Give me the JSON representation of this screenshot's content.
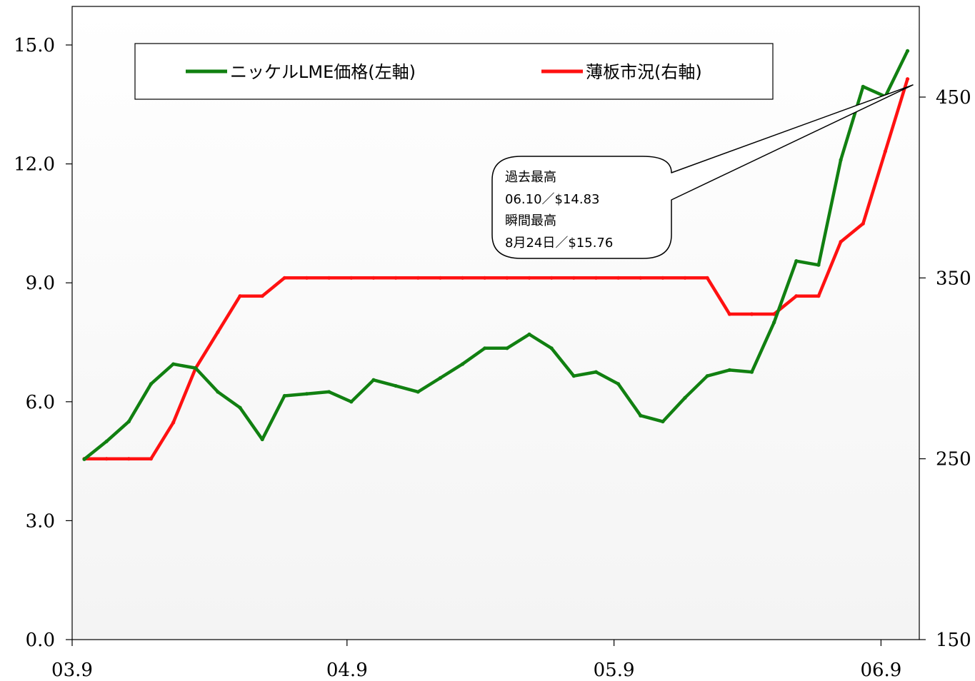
{
  "chart_data": {
    "type": "line",
    "x_labels": [
      "03.9",
      "04.9",
      "05.9",
      "06.9"
    ],
    "x_label_index": [
      0,
      12,
      24,
      36
    ],
    "left_axis": {
      "ylim": [
        0,
        15
      ],
      "ticks": [
        "0.0",
        "3.0",
        "6.0",
        "9.0",
        "12.0",
        "15.0"
      ],
      "tick_values": [
        0,
        3,
        6,
        9,
        12,
        15
      ]
    },
    "right_axis": {
      "ylim": [
        150,
        480
      ],
      "ticks": [
        "150",
        "250",
        "350",
        "450"
      ],
      "tick_values": [
        150,
        250,
        350,
        450
      ]
    },
    "legend_position": "top",
    "series": [
      {
        "name": "ニッケルLME価格(左軸)",
        "axis": "left",
        "color": "#118011",
        "values": [
          4.55,
          5.0,
          5.5,
          6.45,
          6.95,
          6.85,
          6.25,
          5.85,
          5.05,
          6.15,
          6.2,
          6.25,
          6.0,
          6.55,
          6.4,
          6.25,
          6.6,
          6.95,
          7.35,
          7.35,
          7.7,
          7.35,
          6.65,
          6.75,
          6.45,
          5.65,
          5.5,
          6.1,
          6.65,
          6.8,
          6.75,
          8.0,
          9.55,
          9.45,
          12.1,
          13.95,
          13.7,
          14.85
        ]
      },
      {
        "name": "薄板市況(右軸)",
        "axis": "right",
        "color": "#ff1111",
        "values": [
          250,
          250,
          250,
          250,
          270,
          300,
          320,
          340,
          340,
          350,
          350,
          350,
          350,
          350,
          350,
          350,
          350,
          350,
          350,
          350,
          350,
          350,
          350,
          350,
          350,
          350,
          350,
          350,
          350,
          330,
          330,
          330,
          340,
          340,
          370,
          380,
          420,
          460
        ]
      }
    ],
    "annotation": {
      "lines": [
        "過去最高",
        "06.10／$14.83",
        "瞬間最高",
        "8月24日／$15.76"
      ]
    }
  }
}
